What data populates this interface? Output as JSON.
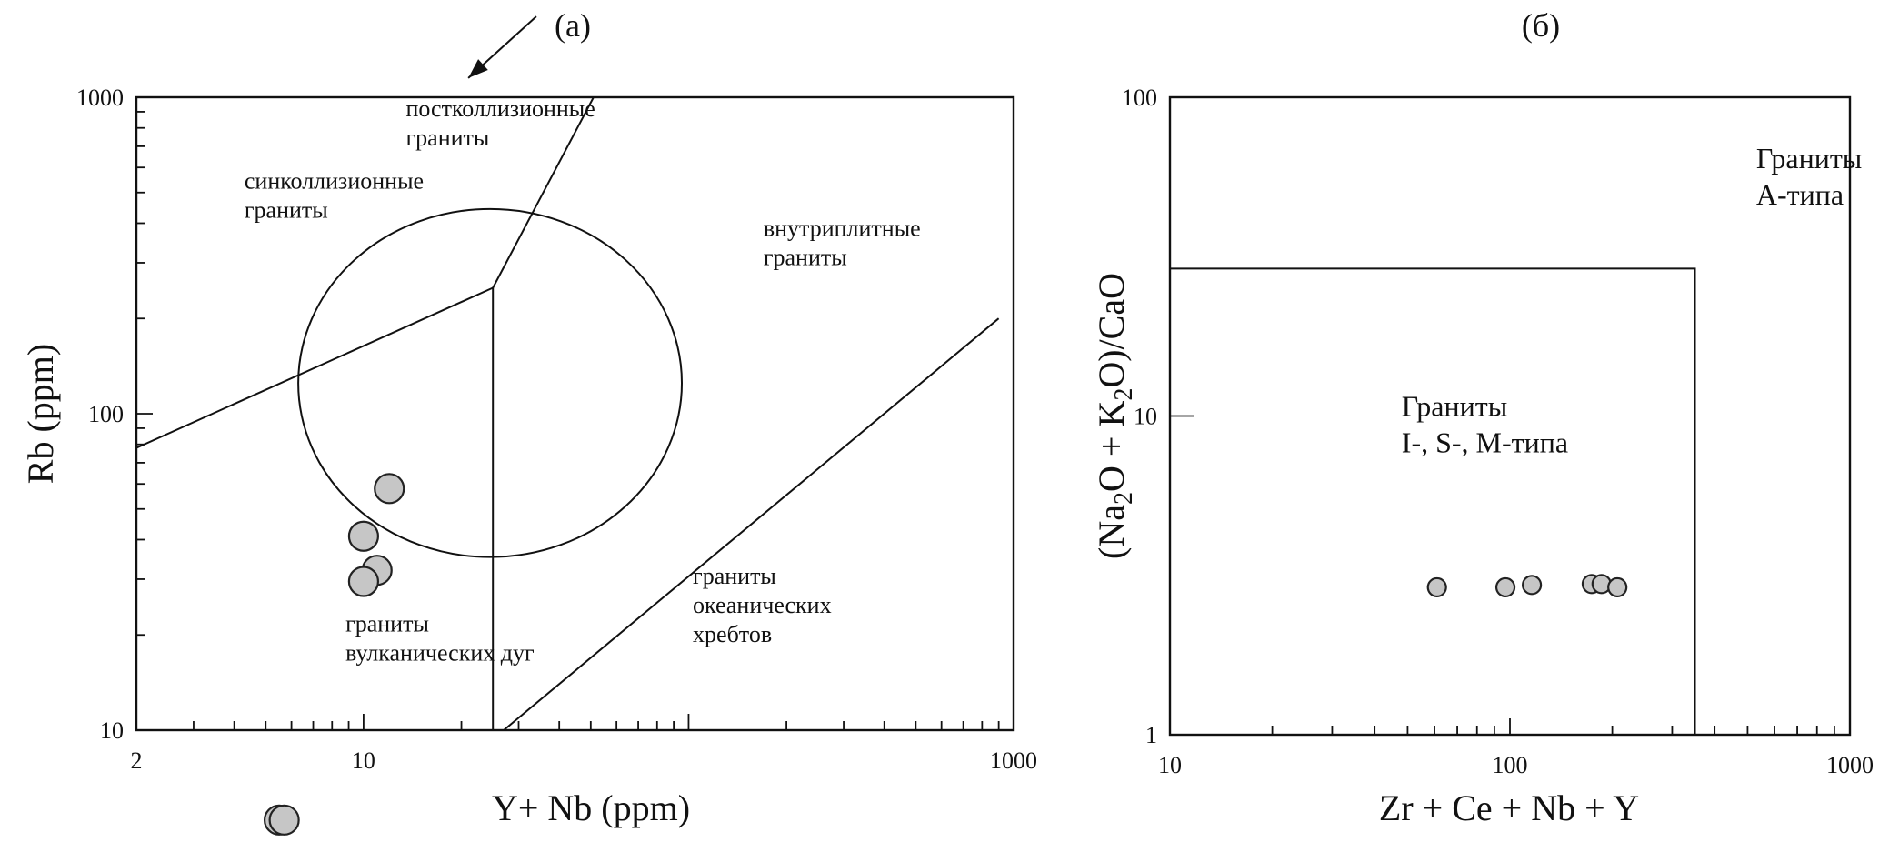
{
  "chart_data": [
    {
      "type": "scatter",
      "title": "(а)",
      "xlabel": "Y+ Nb (ppm)",
      "ylabel": "Rb (ppm)",
      "xscale": "log",
      "yscale": "log",
      "xlim": [
        2,
        1000
      ],
      "ylim": [
        10,
        1000
      ],
      "x_tick_labels": [
        {
          "value": 2,
          "label": "2"
        },
        {
          "value": 10,
          "label": "10"
        },
        {
          "value": 1000,
          "label": "1000"
        }
      ],
      "y_tick_labels": [
        {
          "value": 10,
          "label": "10"
        },
        {
          "value": 100,
          "label": "100"
        },
        {
          "value": 1000,
          "label": "1000"
        }
      ],
      "series": [
        {
          "points": [
            {
              "x": 12,
              "y": 58
            },
            {
              "x": 10,
              "y": 41
            },
            {
              "x": 11,
              "y": 32
            },
            {
              "x": 10,
              "y": 29.5
            }
          ]
        }
      ],
      "extra_points": [
        {
          "x": 5.5,
          "y": 5.2
        },
        {
          "x": 5.7,
          "y": 5.2
        }
      ],
      "boundaries": [
        {
          "points": [
            [
              2,
              78
            ],
            [
              25,
              250
            ]
          ]
        },
        {
          "points": [
            [
              25,
              250
            ],
            [
              80,
              2400
            ]
          ]
        },
        {
          "points": [
            [
              25,
              250
            ],
            [
              25,
              10
            ]
          ]
        },
        {
          "points": [
            [
              27,
              10
            ],
            [
              900,
              200
            ]
          ]
        },
        {
          "ellipse": {
            "cx": 24.5,
            "cy": 125,
            "x_half_span_decades": 0.59,
            "y_half_span_decades": 0.55
          }
        }
      ],
      "annotations": [
        {
          "lines": [
            "постколлизионные",
            "граниты"
          ],
          "x": 13.5,
          "y": 870
        },
        {
          "lines": [
            "синколлизионные",
            "граниты"
          ],
          "x": 4.3,
          "y": 515
        },
        {
          "lines": [
            "внутриплитные",
            "граниты"
          ],
          "x": 170,
          "y": 365
        },
        {
          "lines": [
            "граниты",
            "вулканических дуг"
          ],
          "x": 8.8,
          "y": 20.5
        },
        {
          "lines": [
            "граниты",
            "океанических",
            "хребтов"
          ],
          "x": 103,
          "y": 29
        }
      ],
      "arrow": {
        "from": [
          34,
          1800
        ],
        "to": [
          21,
          1150
        ]
      }
    },
    {
      "type": "scatter",
      "title": "(б)",
      "xlabel": "Zr + Ce + Nb + Y",
      "ylabel_parts": [
        "(Na",
        "2",
        "O + K",
        "2",
        "O)/CaO"
      ],
      "xscale": "log",
      "yscale": "log",
      "xlim": [
        10,
        1000
      ],
      "ylim": [
        1,
        100
      ],
      "x_tick_labels": [
        {
          "value": 10,
          "label": "10"
        },
        {
          "value": 100,
          "label": "100"
        },
        {
          "value": 1000,
          "label": "1000"
        }
      ],
      "y_tick_labels": [
        {
          "value": 1,
          "label": "1"
        },
        {
          "value": 10,
          "label": "10"
        },
        {
          "value": 100,
          "label": "100"
        }
      ],
      "series": [
        {
          "points": [
            {
              "x": 61,
              "y": 2.9
            },
            {
              "x": 97,
              "y": 2.9
            },
            {
              "x": 116,
              "y": 2.95
            },
            {
              "x": 174,
              "y": 2.97
            },
            {
              "x": 186,
              "y": 2.97
            },
            {
              "x": 207,
              "y": 2.9
            }
          ]
        }
      ],
      "boundaries": [
        {
          "points": [
            [
              10,
              29
            ],
            [
              350,
              29
            ],
            [
              350,
              1
            ]
          ]
        }
      ],
      "annotations": [
        {
          "lines": [
            "Граниты",
            "А-типа"
          ],
          "x": 530,
          "y": 60
        },
        {
          "lines": [
            "Граниты",
            "I-, S-, М-типа"
          ],
          "x": 48,
          "y": 10
        }
      ]
    }
  ]
}
